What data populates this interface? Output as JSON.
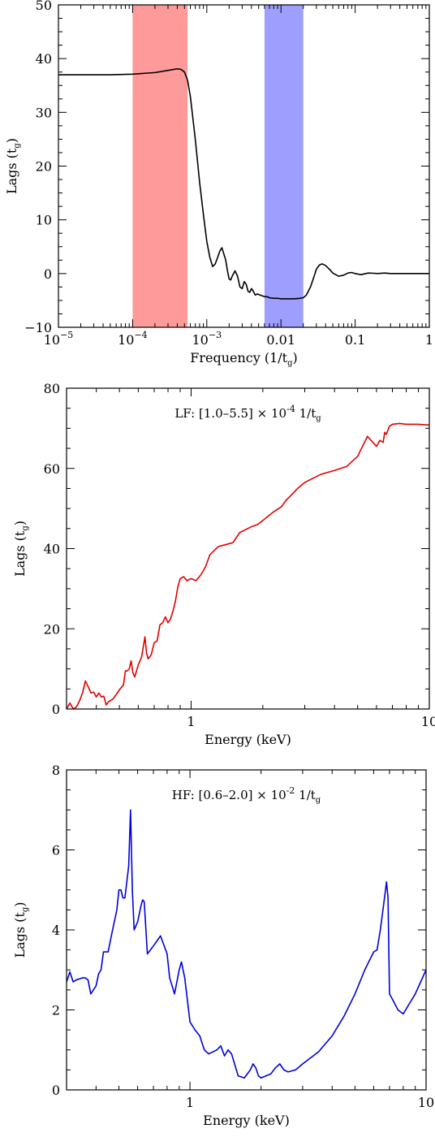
{
  "chart_data": [
    {
      "type": "line",
      "xscale": "log",
      "xlim": [
        1e-05,
        1
      ],
      "ylim": [
        -10,
        50
      ],
      "xlabel": "Frequency (1/t",
      "xlabel_sub": "g",
      "xlabel_end": ")",
      "ylabel": "Lags (t",
      "ylabel_sub": "g",
      "ylabel_end": ")",
      "xticks": [
        {
          "value": 1e-05,
          "base": "10",
          "exp": "−5"
        },
        {
          "value": 0.0001,
          "base": "10",
          "exp": "−4"
        },
        {
          "value": 0.001,
          "base": "10",
          "exp": "−3"
        },
        {
          "value": 0.01,
          "label": "0.01"
        },
        {
          "value": 0.1,
          "label": "0.1"
        },
        {
          "value": 1,
          "label": "1"
        }
      ],
      "yticks": [
        {
          "value": -10,
          "label": "−10"
        },
        {
          "value": 0,
          "label": "0"
        },
        {
          "value": 10,
          "label": "10"
        },
        {
          "value": 20,
          "label": "20"
        },
        {
          "value": 30,
          "label": "30"
        },
        {
          "value": 40,
          "label": "40"
        },
        {
          "value": 50,
          "label": "50"
        }
      ],
      "bands": [
        {
          "x0": 0.0001,
          "x1": 0.00055,
          "color": "#ff9a9a"
        },
        {
          "x0": 0.006,
          "x1": 0.02,
          "color": "#9e9eff"
        }
      ],
      "series": [
        {
          "color": "#000000",
          "x": [
            1e-05,
            5e-05,
            0.0001,
            0.0002,
            0.0003,
            0.0004,
            0.00045,
            0.0005,
            0.00055,
            0.0006,
            0.0007,
            0.0008,
            0.0009,
            0.001,
            0.0011,
            0.0012,
            0.0013,
            0.0014,
            0.0015,
            0.0016,
            0.0018,
            0.0019,
            0.002,
            0.0021,
            0.0022,
            0.0024,
            0.0026,
            0.0028,
            0.003,
            0.0032,
            0.0034,
            0.0036,
            0.0038,
            0.004,
            0.0042,
            0.0045,
            0.0048,
            0.005,
            0.0055,
            0.006,
            0.0065,
            0.007,
            0.008,
            0.009,
            0.01,
            0.012,
            0.015,
            0.018,
            0.02,
            0.022,
            0.025,
            0.028,
            0.03,
            0.033,
            0.036,
            0.04,
            0.045,
            0.05,
            0.06,
            0.07,
            0.08,
            0.09,
            0.1,
            0.12,
            0.15,
            0.18,
            0.2,
            0.25,
            0.3,
            0.4,
            0.5,
            0.7,
            1.0
          ],
          "y": [
            37,
            37,
            37.1,
            37.4,
            37.8,
            38.1,
            38.0,
            37.5,
            36.0,
            33.0,
            25.0,
            17.0,
            11.0,
            6.0,
            3.0,
            1.3,
            1.8,
            3.0,
            4.2,
            4.8,
            2.5,
            0.5,
            -1.0,
            -1.2,
            -0.5,
            0.5,
            -0.5,
            -2.5,
            -2.8,
            -1.5,
            -2.0,
            -3.3,
            -3.5,
            -2.8,
            -3.2,
            -4.0,
            -3.8,
            -3.9,
            -4.1,
            -4.3,
            -4.3,
            -4.5,
            -4.6,
            -4.6,
            -4.7,
            -4.7,
            -4.7,
            -4.6,
            -4.5,
            -4.0,
            -2.5,
            -0.5,
            0.8,
            1.6,
            1.8,
            1.5,
            0.8,
            0.1,
            -0.5,
            -0.3,
            0.1,
            0.2,
            0.0,
            -0.2,
            0.1,
            0.05,
            0.0,
            0.1,
            0.0,
            0.0,
            0.0,
            0.0,
            0.0
          ]
        }
      ]
    },
    {
      "type": "line",
      "xscale": "log",
      "xlim": [
        0.3,
        10
      ],
      "ylim": [
        0,
        80
      ],
      "xlabel": "Energy (keV)",
      "ylabel": "Lags (t",
      "ylabel_sub": "g",
      "ylabel_end": ")",
      "annotation": {
        "text": "LF: [1.0–5.5] × 10",
        "sup": "-4",
        "tail": " 1/t",
        "sub": "g"
      },
      "xticks": [
        {
          "value": 1,
          "label": "1"
        },
        {
          "value": 10,
          "label": "10"
        }
      ],
      "yticks": [
        {
          "value": 0,
          "label": "0"
        },
        {
          "value": 20,
          "label": "20"
        },
        {
          "value": 40,
          "label": "40"
        },
        {
          "value": 60,
          "label": "60"
        },
        {
          "value": 80,
          "label": "80"
        }
      ],
      "series": [
        {
          "color": "#e00000",
          "x": [
            0.3,
            0.31,
            0.32,
            0.33,
            0.34,
            0.35,
            0.36,
            0.37,
            0.38,
            0.39,
            0.4,
            0.41,
            0.42,
            0.43,
            0.44,
            0.45,
            0.47,
            0.49,
            0.5,
            0.52,
            0.53,
            0.54,
            0.55,
            0.56,
            0.57,
            0.58,
            0.6,
            0.62,
            0.64,
            0.65,
            0.66,
            0.68,
            0.7,
            0.72,
            0.74,
            0.76,
            0.78,
            0.8,
            0.82,
            0.84,
            0.86,
            0.88,
            0.9,
            0.93,
            0.96,
            1.0,
            1.05,
            1.1,
            1.15,
            1.2,
            1.3,
            1.4,
            1.5,
            1.6,
            1.8,
            1.9,
            2.0,
            2.2,
            2.4,
            2.5,
            2.6,
            2.8,
            3.0,
            3.5,
            4.0,
            4.5,
            5.0,
            5.5,
            6.0,
            6.2,
            6.4,
            6.5,
            6.6,
            6.8,
            7.0,
            7.5,
            8.0,
            9.0,
            10.0
          ],
          "y": [
            0,
            1.5,
            0,
            0.5,
            2,
            4,
            7,
            5.5,
            4,
            4.2,
            3,
            4,
            3,
            3.2,
            1,
            1.8,
            2.5,
            4,
            4.8,
            6,
            9.5,
            9.5,
            10,
            12,
            9,
            8,
            11,
            13,
            18,
            14,
            12.5,
            13.5,
            16.5,
            17,
            21,
            21.5,
            23,
            21.5,
            22.5,
            24.5,
            27,
            30.5,
            32.5,
            33,
            32,
            32.5,
            32,
            33.5,
            35.5,
            38.5,
            40.5,
            41,
            41.5,
            44,
            45.5,
            46,
            47,
            49,
            50.5,
            52,
            53,
            55,
            56.5,
            58.5,
            59.5,
            60.5,
            63,
            68,
            65.5,
            67,
            66.5,
            69,
            68.5,
            70.5,
            71,
            71.2,
            71,
            71,
            70.8
          ]
        }
      ]
    },
    {
      "type": "line",
      "xscale": "log",
      "xlim": [
        0.3,
        10
      ],
      "ylim": [
        0,
        8
      ],
      "xlabel": "Energy (keV)",
      "ylabel": "Lags (t",
      "ylabel_sub": "g",
      "ylabel_end": ")",
      "annotation": {
        "text": "HF: [0.6–2.0] × 10",
        "sup": "-2",
        "tail": " 1/t",
        "sub": "g"
      },
      "xticks": [
        {
          "value": 1,
          "label": "1"
        },
        {
          "value": 10,
          "label": "10"
        }
      ],
      "yticks": [
        {
          "value": 0,
          "label": "0"
        },
        {
          "value": 2,
          "label": "2"
        },
        {
          "value": 4,
          "label": "4"
        },
        {
          "value": 6,
          "label": "6"
        },
        {
          "value": 8,
          "label": "8"
        }
      ],
      "series": [
        {
          "color": "#0000dd",
          "x": [
            0.3,
            0.31,
            0.32,
            0.33,
            0.35,
            0.36,
            0.37,
            0.38,
            0.4,
            0.41,
            0.42,
            0.43,
            0.45,
            0.47,
            0.49,
            0.5,
            0.51,
            0.52,
            0.53,
            0.55,
            0.56,
            0.57,
            0.58,
            0.6,
            0.62,
            0.63,
            0.64,
            0.66,
            0.68,
            0.7,
            0.72,
            0.75,
            0.8,
            0.82,
            0.84,
            0.86,
            0.88,
            0.9,
            0.92,
            0.95,
            1.0,
            1.05,
            1.1,
            1.15,
            1.2,
            1.25,
            1.3,
            1.35,
            1.4,
            1.45,
            1.5,
            1.6,
            1.7,
            1.8,
            1.85,
            1.9,
            1.95,
            2.0,
            2.2,
            2.3,
            2.4,
            2.5,
            2.6,
            2.8,
            3.0,
            3.5,
            4.0,
            4.5,
            5.0,
            5.5,
            6.0,
            6.2,
            6.4,
            6.6,
            6.8,
            6.9,
            7.0,
            7.3,
            7.6,
            8.0,
            9.0,
            10.0
          ],
          "y": [
            2.7,
            2.95,
            2.7,
            2.75,
            2.8,
            2.8,
            2.75,
            2.4,
            2.6,
            2.9,
            3.0,
            3.45,
            3.45,
            4.0,
            4.5,
            5.0,
            5.0,
            4.8,
            4.8,
            5.6,
            7.0,
            5.0,
            4.0,
            4.2,
            4.6,
            4.75,
            4.7,
            3.4,
            3.5,
            3.6,
            3.7,
            3.85,
            3.4,
            2.8,
            2.6,
            2.4,
            2.7,
            3.0,
            3.2,
            2.8,
            1.7,
            1.5,
            1.35,
            1.0,
            0.9,
            0.95,
            1.0,
            1.1,
            0.85,
            1.0,
            0.9,
            0.35,
            0.3,
            0.5,
            0.65,
            0.55,
            0.35,
            0.3,
            0.4,
            0.55,
            0.65,
            0.5,
            0.45,
            0.5,
            0.65,
            0.95,
            1.35,
            1.85,
            2.4,
            3.0,
            3.45,
            3.5,
            4.0,
            4.6,
            5.2,
            4.8,
            2.4,
            2.2,
            2.0,
            1.9,
            2.4,
            3.0
          ]
        }
      ]
    }
  ]
}
